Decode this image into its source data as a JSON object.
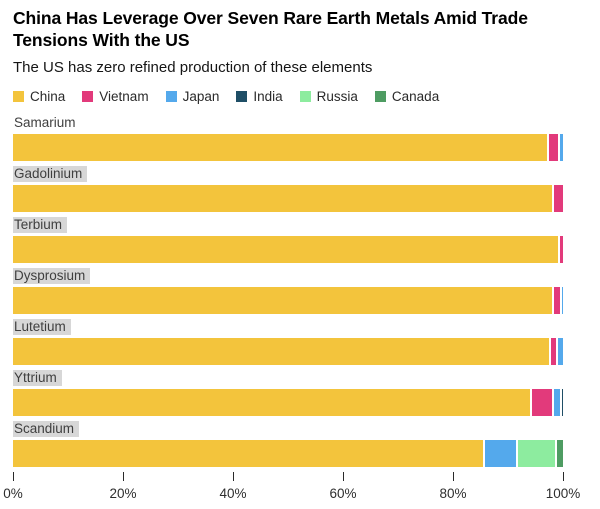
{
  "header": {
    "title": "China Has Leverage Over Seven Rare Earth Metals Amid Trade Tensions With the US",
    "subtitle": "The US has zero refined production of these elements"
  },
  "legend": [
    {
      "label": "China",
      "color": "#f3c43c"
    },
    {
      "label": "Vietnam",
      "color": "#e23a7b"
    },
    {
      "label": "Japan",
      "color": "#54a9ec"
    },
    {
      "label": "India",
      "color": "#1f4e66"
    },
    {
      "label": "Russia",
      "color": "#8dec9f"
    },
    {
      "label": "Canada",
      "color": "#4e9c62"
    }
  ],
  "chart_data": {
    "type": "bar",
    "orientation": "horizontal",
    "stacked": true,
    "unit": "percent",
    "title": "China Has Leverage Over Seven Rare Earth Metals Amid Trade Tensions With the US",
    "subtitle": "The US has zero refined production of these elements",
    "categories": [
      "Samarium",
      "Gadolinium",
      "Terbium",
      "Dysprosium",
      "Lutetium",
      "Yttrium",
      "Scandium"
    ],
    "label_highlighted": [
      false,
      true,
      true,
      true,
      true,
      true,
      true
    ],
    "series": [
      {
        "name": "China",
        "values": [
          97,
          98,
          99,
          98,
          97.5,
          94,
          85.5
        ]
      },
      {
        "name": "Vietnam",
        "values": [
          2,
          2,
          1,
          1.5,
          1.2,
          4,
          0
        ]
      },
      {
        "name": "Japan",
        "values": [
          1,
          0,
          0,
          0.5,
          1.3,
          1.4,
          6
        ]
      },
      {
        "name": "India",
        "values": [
          0,
          0,
          0,
          0,
          0,
          0.6,
          0
        ]
      },
      {
        "name": "Russia",
        "values": [
          0,
          0,
          0,
          0,
          0,
          0,
          7
        ]
      },
      {
        "name": "Canada",
        "values": [
          0,
          0,
          0,
          0,
          0,
          0,
          1.5
        ]
      }
    ],
    "xlim": [
      0,
      100
    ],
    "x_tick_values": [
      0,
      20,
      40,
      60,
      80,
      100
    ],
    "x_tick_labels": [
      "0%",
      "20%",
      "40%",
      "60%",
      "80%",
      "100%"
    ],
    "grid": false,
    "legend_position": "top"
  }
}
